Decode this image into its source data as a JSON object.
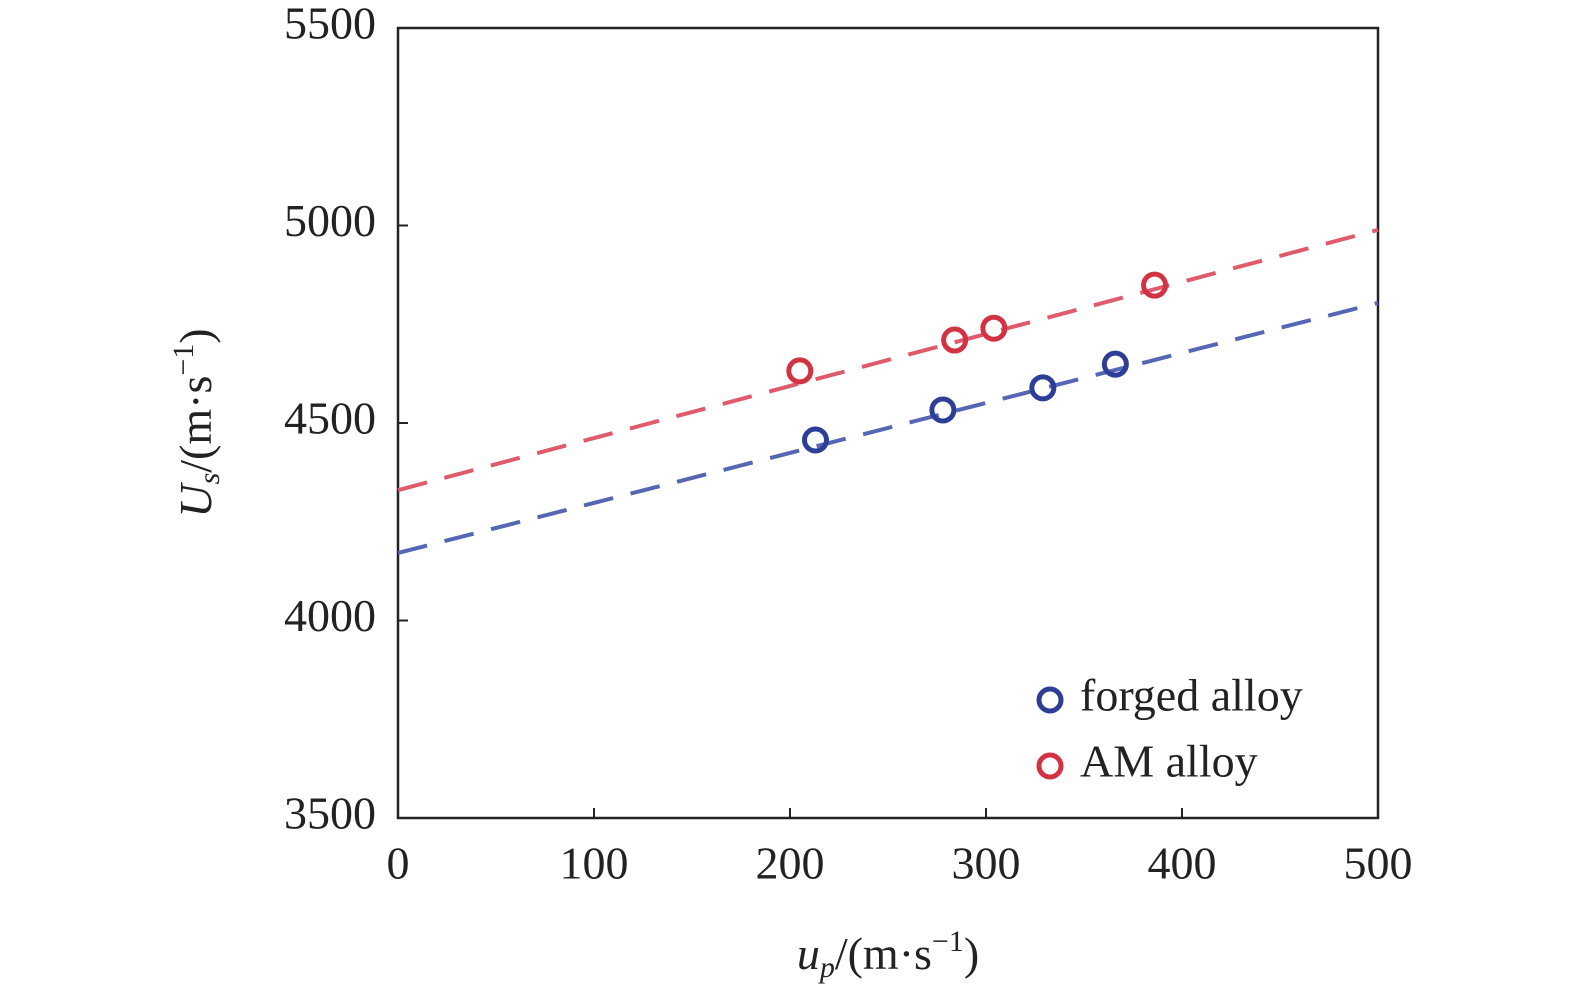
{
  "chart_data": {
    "type": "scatter",
    "x_label": {
      "main": "u",
      "sub": "p",
      "unit": "/(m·s",
      "sup": "−1",
      "close": ")"
    },
    "y_label": {
      "main": "U",
      "sub": "s",
      "unit": "/(m·s",
      "sup": "−1",
      "close": ")"
    },
    "xlim": [
      0,
      500
    ],
    "xticks": [
      0,
      100,
      200,
      300,
      400,
      500
    ],
    "ylim": [
      3500,
      5500
    ],
    "yticks": [
      3500,
      4000,
      4500,
      5000,
      5500
    ],
    "legend": "lower right",
    "series": [
      {
        "name": "forged alloy",
        "color": "#2e3d96",
        "line_color": "#5566b4",
        "x": [
          213,
          278,
          329,
          366
        ],
        "values": [
          4457,
          4533,
          4589,
          4649
        ],
        "fit": {
          "x": [
            0,
            500
          ],
          "y": [
            4171,
            4804
          ]
        }
      },
      {
        "name": "AM alloy",
        "color": "#d23343",
        "line_color": "#df5a6b",
        "x": [
          205,
          284,
          304,
          386
        ],
        "values": [
          4632,
          4710,
          4740,
          4849
        ],
        "fit": {
          "x": [
            0,
            500
          ],
          "y": [
            4330,
            4989
          ]
        }
      }
    ]
  }
}
